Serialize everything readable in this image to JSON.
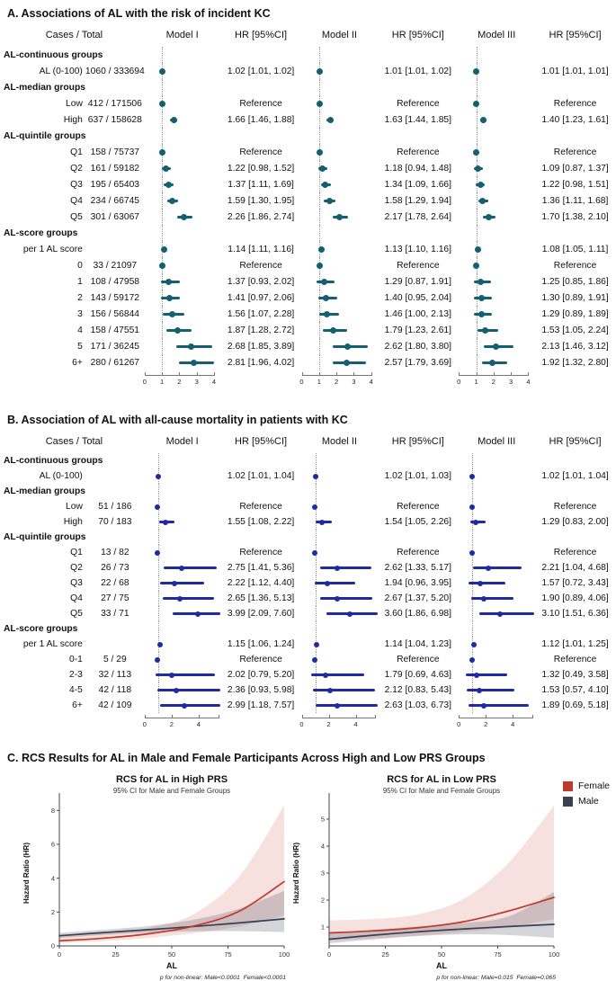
{
  "figure": {
    "panel_c_heading": "C. RCS Results for AL in Male and Female Participants Across High and Low PRS Groups",
    "legend": {
      "items": [
        {
          "label": "Female",
          "color": "#c0392b"
        },
        {
          "label": "Male",
          "color": "#3a3f52"
        }
      ]
    },
    "colors": {
      "panelA_marker": "#14606f",
      "panelB_marker": "#202ba3",
      "ref_line": "#9a9a9a",
      "axis": "#777777"
    }
  },
  "chart_data": [
    {
      "type": "forest",
      "panel": "A",
      "title": "A. Associations of AL with the risk of incident KC",
      "col_headers": {
        "cases": "Cases  /  Total",
        "models": [
          "Model I",
          "Model II",
          "Model III"
        ],
        "hr": "HR [95%CI]"
      },
      "xlim": [
        0,
        4.35
      ],
      "axis_ticks": [
        0,
        1,
        2,
        3,
        4
      ],
      "axis_end": 4,
      "ref_line": 1,
      "marker_color": "#14606f",
      "rows": [
        {
          "section": "AL-continuous groups"
        },
        {
          "label": "AL (0-100)",
          "cases": "1060 / 333694",
          "est": [
            [
              1.02,
              1.01,
              1.02
            ],
            [
              1.01,
              1.01,
              1.02
            ],
            [
              1.01,
              1.01,
              1.01
            ]
          ],
          "hr_text": [
            "1.02 [1.01, 1.02]",
            "1.01 [1.01, 1.02]",
            "1.01 [1.01, 1.01]"
          ]
        },
        {
          "section": "AL-median groups"
        },
        {
          "label": "Low",
          "cases": "412 / 171506",
          "est": null,
          "hr_text": [
            "Reference",
            "Reference",
            "Reference"
          ]
        },
        {
          "label": "High",
          "cases": "637 / 158628",
          "est": [
            [
              1.66,
              1.46,
              1.88
            ],
            [
              1.63,
              1.44,
              1.85
            ],
            [
              1.4,
              1.23,
              1.61
            ]
          ],
          "hr_text": [
            "1.66 [1.46, 1.88]",
            "1.63 [1.44, 1.85]",
            "1.40 [1.23, 1.61]"
          ]
        },
        {
          "section": "AL-quintile groups"
        },
        {
          "label": "Q1",
          "cases": "158 / 75737",
          "est": null,
          "hr_text": [
            "Reference",
            "Reference",
            "Reference"
          ]
        },
        {
          "label": "Q2",
          "cases": "161 / 59182",
          "est": [
            [
              1.22,
              0.98,
              1.52
            ],
            [
              1.18,
              0.94,
              1.48
            ],
            [
              1.09,
              0.87,
              1.37
            ]
          ],
          "hr_text": [
            "1.22 [0.98, 1.52]",
            "1.18 [0.94, 1.48]",
            "1.09 [0.87, 1.37]"
          ]
        },
        {
          "label": "Q3",
          "cases": "195 / 65403",
          "est": [
            [
              1.37,
              1.11,
              1.69
            ],
            [
              1.34,
              1.09,
              1.66
            ],
            [
              1.22,
              0.98,
              1.51
            ]
          ],
          "hr_text": [
            "1.37 [1.11, 1.69]",
            "1.34 [1.09, 1.66]",
            "1.22 [0.98, 1.51]"
          ]
        },
        {
          "label": "Q4",
          "cases": "234 / 66745",
          "est": [
            [
              1.59,
              1.3,
              1.95
            ],
            [
              1.58,
              1.29,
              1.94
            ],
            [
              1.36,
              1.11,
              1.68
            ]
          ],
          "hr_text": [
            "1.59 [1.30, 1.95]",
            "1.58 [1.29, 1.94]",
            "1.36 [1.11, 1.68]"
          ]
        },
        {
          "label": "Q5",
          "cases": "301 / 63067",
          "est": [
            [
              2.26,
              1.86,
              2.74
            ],
            [
              2.17,
              1.78,
              2.64
            ],
            [
              1.7,
              1.38,
              2.1
            ]
          ],
          "hr_text": [
            "2.26 [1.86, 2.74]",
            "2.17 [1.78, 2.64]",
            "1.70 [1.38, 2.10]"
          ]
        },
        {
          "section": "AL-score groups"
        },
        {
          "label": "per 1 AL score",
          "cases": "",
          "est": [
            [
              1.14,
              1.11,
              1.16
            ],
            [
              1.13,
              1.1,
              1.16
            ],
            [
              1.08,
              1.05,
              1.11
            ]
          ],
          "hr_text": [
            "1.14 [1.11, 1.16]",
            "1.13 [1.10, 1.16]",
            "1.08 [1.05, 1.11]"
          ]
        },
        {
          "label": "0",
          "cases": "33 / 21097",
          "est": null,
          "hr_text": [
            "Reference",
            "Reference",
            "Reference"
          ]
        },
        {
          "label": "1",
          "cases": "108 / 47958",
          "est": [
            [
              1.37,
              0.93,
              2.02
            ],
            [
              1.29,
              0.87,
              1.91
            ],
            [
              1.25,
              0.85,
              1.86
            ]
          ],
          "hr_text": [
            "1.37 [0.93, 2.02]",
            "1.29 [0.87, 1.91]",
            "1.25 [0.85, 1.86]"
          ]
        },
        {
          "label": "2",
          "cases": "143 / 59172",
          "est": [
            [
              1.41,
              0.97,
              2.06
            ],
            [
              1.4,
              0.95,
              2.04
            ],
            [
              1.3,
              0.89,
              1.91
            ]
          ],
          "hr_text": [
            "1.41 [0.97, 2.06]",
            "1.40 [0.95, 2.04]",
            "1.30 [0.89, 1.91]"
          ]
        },
        {
          "label": "3",
          "cases": "156 / 56844",
          "est": [
            [
              1.56,
              1.07,
              2.28
            ],
            [
              1.46,
              1.0,
              2.13
            ],
            [
              1.29,
              0.89,
              1.89
            ]
          ],
          "hr_text": [
            "1.56 [1.07, 2.28]",
            "1.46 [1.00, 2.13]",
            "1.29 [0.89, 1.89]"
          ]
        },
        {
          "label": "4",
          "cases": "158 / 47551",
          "est": [
            [
              1.87,
              1.28,
              2.72
            ],
            [
              1.79,
              1.23,
              2.61
            ],
            [
              1.53,
              1.05,
              2.24
            ]
          ],
          "hr_text": [
            "1.87 [1.28, 2.72]",
            "1.79 [1.23, 2.61]",
            "1.53 [1.05, 2.24]"
          ]
        },
        {
          "label": "5",
          "cases": "171 / 36245",
          "est": [
            [
              2.68,
              1.85,
              3.89
            ],
            [
              2.62,
              1.8,
              3.8
            ],
            [
              2.13,
              1.46,
              3.12
            ]
          ],
          "hr_text": [
            "2.68 [1.85, 3.89]",
            "2.62 [1.80, 3.80]",
            "2.13 [1.46, 3.12]"
          ]
        },
        {
          "label": "6+",
          "cases": "280 / 61267",
          "est": [
            [
              2.81,
              1.96,
              4.02
            ],
            [
              2.57,
              1.79,
              3.69
            ],
            [
              1.92,
              1.32,
              2.8
            ]
          ],
          "hr_text": [
            "2.81 [1.96, 4.02]",
            "2.57 [1.79, 3.69]",
            "1.92 [1.32, 2.80]"
          ]
        }
      ]
    },
    {
      "type": "forest",
      "panel": "B",
      "title": "B. Association of AL with all-cause mortality in patients with KC",
      "col_headers": {
        "cases": "Cases  /  Total",
        "models": [
          "Model I",
          "Model II",
          "Model III"
        ],
        "hr": "HR [95%CI]"
      },
      "xlim": [
        0,
        5.6
      ],
      "axis_ticks": [
        0,
        2,
        4
      ],
      "axis_end": 5.45,
      "ref_line": 1,
      "marker_color": "#202ba3",
      "rows": [
        {
          "section": "AL-continuous groups"
        },
        {
          "label": "AL (0-100)",
          "cases": "",
          "est": [
            [
              1.02,
              1.01,
              1.04
            ],
            [
              1.02,
              1.01,
              1.03
            ],
            [
              1.02,
              1.01,
              1.04
            ]
          ],
          "hr_text": [
            "1.02 [1.01, 1.04]",
            "1.02 [1.01, 1.03]",
            "1.02 [1.01, 1.04]"
          ]
        },
        {
          "section": "AL-median groups"
        },
        {
          "label": "Low",
          "cases": "51 / 186",
          "est": null,
          "hr_text": [
            "Reference",
            "Reference",
            "Reference"
          ]
        },
        {
          "label": "High",
          "cases": "70 / 183",
          "est": [
            [
              1.55,
              1.08,
              2.22
            ],
            [
              1.54,
              1.05,
              2.26
            ],
            [
              1.29,
              0.83,
              2.0
            ]
          ],
          "hr_text": [
            "1.55 [1.08, 2.22]",
            "1.54 [1.05, 2.26]",
            "1.29 [0.83, 2.00]"
          ]
        },
        {
          "section": "AL-quintile groups"
        },
        {
          "label": "Q1",
          "cases": "13 / 82",
          "est": null,
          "hr_text": [
            "Reference",
            "Reference",
            "Reference"
          ]
        },
        {
          "label": "Q2",
          "cases": "26 / 73",
          "est": [
            [
              2.75,
              1.41,
              5.36
            ],
            [
              2.62,
              1.33,
              5.17
            ],
            [
              2.21,
              1.04,
              4.68
            ]
          ],
          "hr_text": [
            "2.75 [1.41, 5.36]",
            "2.62 [1.33, 5.17]",
            "2.21 [1.04, 4.68]"
          ]
        },
        {
          "label": "Q3",
          "cases": "22 / 68",
          "est": [
            [
              2.22,
              1.12,
              4.4
            ],
            [
              1.94,
              0.96,
              3.95
            ],
            [
              1.57,
              0.72,
              3.43
            ]
          ],
          "hr_text": [
            "2.22 [1.12, 4.40]",
            "1.94 [0.96, 3.95]",
            "1.57 [0.72, 3.43]"
          ]
        },
        {
          "label": "Q4",
          "cases": "27 / 75",
          "est": [
            [
              2.65,
              1.36,
              5.13
            ],
            [
              2.67,
              1.37,
              5.2
            ],
            [
              1.9,
              0.89,
              4.06
            ]
          ],
          "hr_text": [
            "2.65 [1.36, 5.13]",
            "2.67 [1.37, 5.20]",
            "1.90 [0.89, 4.06]"
          ]
        },
        {
          "label": "Q5",
          "cases": "33 / 71",
          "est": [
            [
              3.99,
              2.09,
              7.6
            ],
            [
              3.6,
              1.86,
              6.98
            ],
            [
              3.1,
              1.51,
              6.36
            ]
          ],
          "hr_text": [
            "3.99 [2.09, 7.60]",
            "3.60 [1.86, 6.98]",
            "3.10 [1.51, 6.36]"
          ]
        },
        {
          "section": "AL-score groups"
        },
        {
          "label": "per 1 AL score",
          "cases": "",
          "est": [
            [
              1.15,
              1.06,
              1.24
            ],
            [
              1.14,
              1.04,
              1.23
            ],
            [
              1.12,
              1.01,
              1.25
            ]
          ],
          "hr_text": [
            "1.15 [1.06, 1.24]",
            "1.14 [1.04, 1.23]",
            "1.12 [1.01, 1.25]"
          ]
        },
        {
          "label": "0-1",
          "cases": "5 / 29",
          "est": null,
          "hr_text": [
            "Reference",
            "Reference",
            "Reference"
          ]
        },
        {
          "label": "2-3",
          "cases": "32 / 113",
          "est": [
            [
              2.02,
              0.79,
              5.2
            ],
            [
              1.79,
              0.69,
              4.63
            ],
            [
              1.32,
              0.49,
              3.58
            ]
          ],
          "hr_text": [
            "2.02 [0.79, 5.20]",
            "1.79 [0.69, 4.63]",
            "1.32 [0.49, 3.58]"
          ]
        },
        {
          "label": "4-5",
          "cases": "42 / 118",
          "est": [
            [
              2.36,
              0.93,
              5.98
            ],
            [
              2.12,
              0.83,
              5.43
            ],
            [
              1.53,
              0.57,
              4.1
            ]
          ],
          "hr_text": [
            "2.36 [0.93, 5.98]",
            "2.12 [0.83, 5.43]",
            "1.53 [0.57, 4.10]"
          ]
        },
        {
          "label": "6+",
          "cases": "42 / 109",
          "est": [
            [
              2.99,
              1.18,
              7.57
            ],
            [
              2.63,
              1.03,
              6.73
            ],
            [
              1.89,
              0.69,
              5.18
            ]
          ],
          "hr_text": [
            "2.99 [1.18, 7.57]",
            "2.63 [1.03, 6.73]",
            "1.89 [0.69, 5.18]"
          ]
        }
      ]
    },
    {
      "type": "line",
      "panel": "C-left",
      "title": "RCS for AL in High PRS",
      "subtitle": "95% CI for Male and Female Groups",
      "xlabel": "AL",
      "ylabel": "Hazard Ratio (HR)",
      "xlim": [
        0,
        100
      ],
      "ylim": [
        0,
        8.6
      ],
      "xticks": [
        0,
        25,
        50,
        75,
        100
      ],
      "yticks": [
        0,
        2,
        4,
        6,
        8
      ],
      "caption": "p for non-linear: Male<0.0001  Female<0.0001",
      "x": [
        0,
        20,
        40,
        60,
        80,
        100
      ],
      "series": [
        {
          "name": "Female",
          "color": "#c0392b",
          "band": "rgba(192,57,43,0.15)",
          "y": [
            0.3,
            0.46,
            0.72,
            1.18,
            2.05,
            3.8
          ],
          "upper": [
            0.55,
            0.74,
            1.08,
            1.9,
            4.1,
            8.3
          ],
          "lower": [
            0.17,
            0.29,
            0.48,
            0.76,
            1.15,
            1.8
          ]
        },
        {
          "name": "Male",
          "color": "#3a3f52",
          "band": "rgba(58,63,82,0.22)",
          "y": [
            0.6,
            0.79,
            0.96,
            1.15,
            1.36,
            1.6
          ],
          "upper": [
            0.77,
            0.96,
            1.18,
            1.55,
            2.2,
            3.25
          ],
          "lower": [
            0.47,
            0.65,
            0.79,
            0.87,
            0.87,
            0.82
          ]
        }
      ]
    },
    {
      "type": "line",
      "panel": "C-right",
      "title": "RCS for AL in Low PRS",
      "subtitle": "95% CI for Male and Female Groups",
      "xlabel": "AL",
      "ylabel": "Hazard Ratio (HR)",
      "xlim": [
        0,
        100
      ],
      "ylim": [
        0.3,
        5.7
      ],
      "xticks": [
        0,
        25,
        50,
        75,
        100
      ],
      "yticks": [
        1,
        2,
        3,
        4,
        5
      ],
      "caption": "p for non-linear: Male=0.015  Female=0.065",
      "x": [
        0,
        20,
        40,
        60,
        80,
        100
      ],
      "series": [
        {
          "name": "Female",
          "color": "#c0392b",
          "band": "rgba(192,57,43,0.15)",
          "y": [
            0.78,
            0.86,
            0.98,
            1.2,
            1.6,
            2.1
          ],
          "upper": [
            1.25,
            1.3,
            1.48,
            2.05,
            3.4,
            5.5
          ],
          "lower": [
            0.5,
            0.58,
            0.68,
            0.82,
            1.0,
            1.3
          ]
        },
        {
          "name": "Male",
          "color": "#3a3f52",
          "band": "rgba(58,63,82,0.22)",
          "y": [
            0.55,
            0.7,
            0.83,
            0.93,
            1.02,
            1.1
          ],
          "upper": [
            0.76,
            0.9,
            1.02,
            1.15,
            1.4,
            2.3
          ],
          "lower": [
            0.4,
            0.54,
            0.67,
            0.73,
            0.7,
            0.6
          ]
        }
      ]
    }
  ]
}
